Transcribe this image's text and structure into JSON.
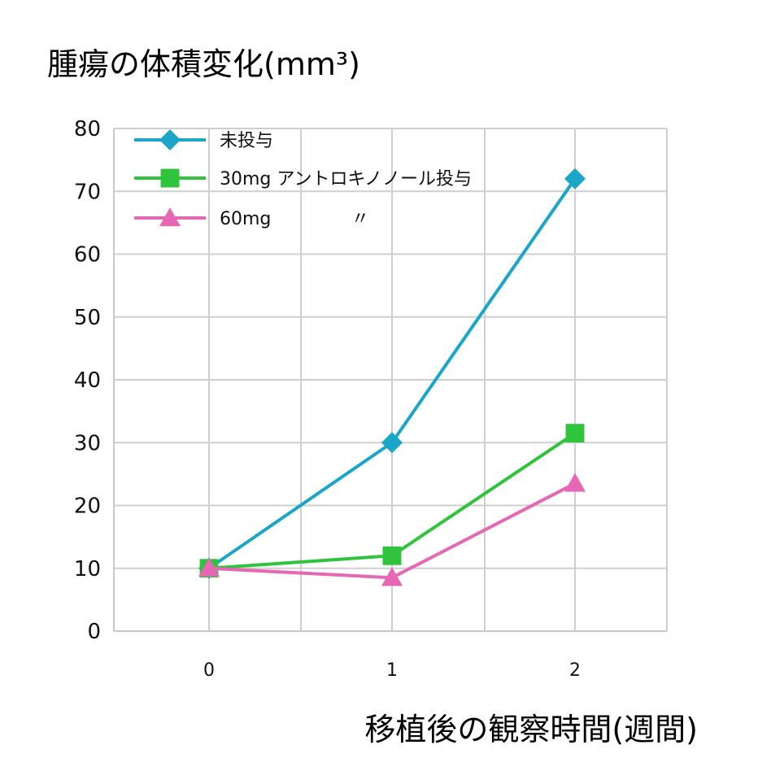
{
  "chart_data": {
    "type": "line",
    "title": "",
    "ylabel": "腫瘍の体積変化(mm³)",
    "xlabel": "移植後の観察時間(週間)",
    "x": [
      "0",
      "1",
      "2"
    ],
    "y_ticks": [
      "0",
      "10",
      "20",
      "30",
      "40",
      "50",
      "60",
      "70",
      "80"
    ],
    "ylim": [
      0,
      80
    ],
    "grid": true,
    "legend_position": "top-left",
    "series": [
      {
        "name": "未投与",
        "values": [
          10,
          30,
          72
        ],
        "color": "#1aa6c8",
        "marker": "diamond"
      },
      {
        "name": "30mg アントロキノノール投与",
        "values": [
          10,
          12,
          31.5
        ],
        "color": "#2fc43c",
        "marker": "square"
      },
      {
        "name": "60mg",
        "legend_suffix": "〃",
        "values": [
          10,
          8.5,
          23.5
        ],
        "color": "#e667b4",
        "marker": "triangle"
      }
    ]
  }
}
